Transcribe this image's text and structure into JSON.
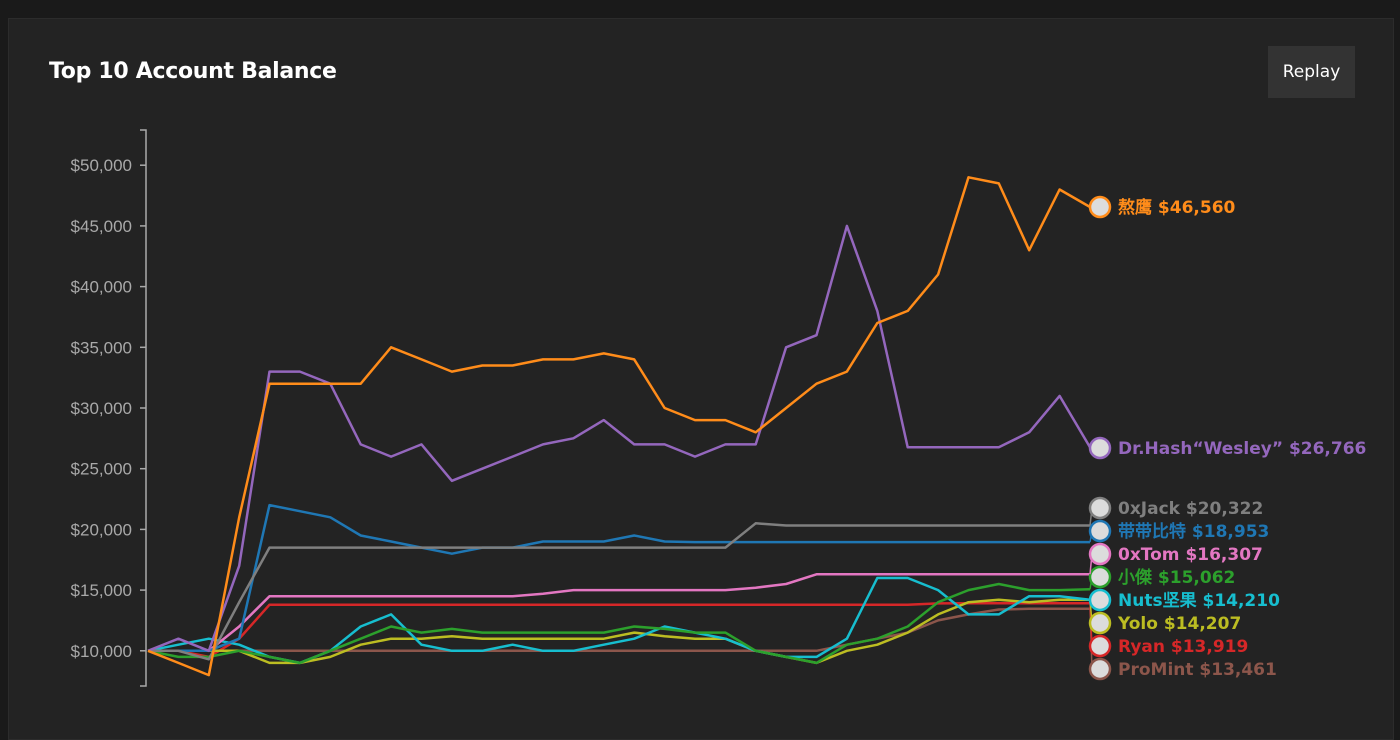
{
  "header": {
    "title": "Top 10 Account Balance",
    "replay_label": "Replay"
  },
  "chart_data": {
    "type": "line",
    "title": "Top 10 Account Balance",
    "xlabel": "",
    "ylabel": "",
    "ylim": [
      7100,
      52900
    ],
    "yticks": [
      {
        "v": 10000,
        "label": "$10,000"
      },
      {
        "v": 15000,
        "label": "$15,000"
      },
      {
        "v": 20000,
        "label": "$20,000"
      },
      {
        "v": 25000,
        "label": "$25,000"
      },
      {
        "v": 30000,
        "label": "$30,000"
      },
      {
        "v": 35000,
        "label": "$35,000"
      },
      {
        "v": 40000,
        "label": "$40,000"
      },
      {
        "v": 45000,
        "label": "$45,000"
      },
      {
        "v": 50000,
        "label": "$50,000"
      }
    ],
    "x": [
      0,
      1,
      2,
      3,
      4,
      5,
      6,
      7,
      8,
      9,
      10,
      11,
      12,
      13,
      14,
      15,
      16,
      17,
      18,
      19,
      20,
      21,
      22,
      23,
      24,
      25,
      26,
      27,
      28,
      29,
      30,
      31
    ],
    "series": [
      {
        "name": "熬鹰",
        "value_label": "$46,560",
        "color": "#ff8c1a",
        "label": "熬鹰 $46,560",
        "values": [
          10000,
          9000,
          8000,
          21000,
          32000,
          32000,
          32000,
          32000,
          35000,
          34000,
          33000,
          33500,
          33500,
          34000,
          34000,
          34500,
          34000,
          30000,
          29000,
          29000,
          28000,
          30000,
          32000,
          33000,
          37000,
          38000,
          41000,
          49000,
          48500,
          43000,
          48000,
          46560
        ]
      },
      {
        "name": "Dr.Hash“Wesley”",
        "value_label": "$26,766",
        "color": "#9467bd",
        "label": "Dr.Hash“Wesley” $26,766",
        "values": [
          10000,
          11000,
          10000,
          17000,
          33000,
          33000,
          32000,
          27000,
          26000,
          27000,
          24000,
          25000,
          26000,
          27000,
          27500,
          29000,
          27000,
          27000,
          26000,
          27000,
          27000,
          35000,
          36000,
          45000,
          38000,
          26766,
          26766,
          26766,
          26766,
          28000,
          31000,
          26766
        ]
      },
      {
        "name": "0xJack",
        "value_label": "$20,322",
        "color": "#7f7f7f",
        "label": "0xJack $20,322",
        "values": [
          10000,
          10000,
          9300,
          14000,
          18500,
          18500,
          18500,
          18500,
          18500,
          18500,
          18500,
          18500,
          18500,
          18500,
          18500,
          18500,
          18500,
          18500,
          18500,
          18500,
          20500,
          20322,
          20322,
          20322,
          20322,
          20322,
          20322,
          20322,
          20322,
          20322,
          20322,
          20322
        ]
      },
      {
        "name": "带带比特",
        "value_label": "$18,953",
        "color": "#1f77b4",
        "label": "带带比特 $18,953",
        "values": [
          10000,
          10000,
          10000,
          11000,
          22000,
          21500,
          21000,
          19500,
          19000,
          18500,
          18000,
          18500,
          18500,
          19000,
          19000,
          19000,
          19500,
          19000,
          18953,
          18953,
          18953,
          18953,
          18953,
          18953,
          18953,
          18953,
          18953,
          18953,
          18953,
          18953,
          18953,
          18953
        ]
      },
      {
        "name": "0xTom",
        "value_label": "$16,307",
        "color": "#e377c2",
        "label": "0xTom $16,307",
        "values": [
          10000,
          10000,
          10000,
          12000,
          14500,
          14500,
          14500,
          14500,
          14500,
          14500,
          14500,
          14500,
          14500,
          14700,
          15000,
          15000,
          15000,
          15000,
          15000,
          15000,
          15200,
          15500,
          16300,
          16307,
          16307,
          16307,
          16307,
          16307,
          16307,
          16307,
          16307,
          16307
        ]
      },
      {
        "name": "小傑",
        "value_label": "$15,062",
        "color": "#2ca02c",
        "label": "小傑 $15,062",
        "values": [
          10000,
          9500,
          9500,
          10000,
          9500,
          9000,
          10000,
          11000,
          12000,
          11500,
          11800,
          11500,
          11500,
          11500,
          11500,
          11500,
          12000,
          11800,
          11500,
          11500,
          10000,
          9500,
          9000,
          10500,
          11000,
          12000,
          14000,
          15000,
          15500,
          15000,
          15000,
          15062
        ]
      },
      {
        "name": "Nuts坚果",
        "value_label": "$14,210",
        "color": "#17becf",
        "label": "Nuts坚果 $14,210",
        "values": [
          10000,
          10500,
          11000,
          10500,
          9500,
          9000,
          10000,
          12000,
          13000,
          10500,
          10000,
          10000,
          10500,
          10000,
          10000,
          10500,
          11000,
          12000,
          11500,
          11000,
          10000,
          9500,
          9500,
          11000,
          16000,
          16000,
          15000,
          13000,
          13000,
          14500,
          14500,
          14210
        ]
      },
      {
        "name": "Yolo",
        "value_label": "$14,207",
        "color": "#bcbd22",
        "label": "Yolo $14,207",
        "values": [
          10000,
          10000,
          10000,
          10000,
          9000,
          9000,
          9500,
          10500,
          11000,
          11000,
          11200,
          11000,
          11000,
          11000,
          11000,
          11000,
          11500,
          11200,
          11000,
          11000,
          10000,
          9500,
          9000,
          10000,
          10500,
          11500,
          13000,
          14000,
          14200,
          14000,
          14200,
          14207
        ]
      },
      {
        "name": "Ryan",
        "value_label": "$13,919",
        "color": "#d62728",
        "label": "Ryan $13,919",
        "values": [
          10000,
          10000,
          9500,
          11000,
          13800,
          13800,
          13800,
          13800,
          13800,
          13800,
          13800,
          13800,
          13800,
          13800,
          13800,
          13800,
          13800,
          13800,
          13800,
          13800,
          13800,
          13800,
          13800,
          13800,
          13800,
          13800,
          13900,
          13919,
          13919,
          13919,
          13919,
          13919
        ]
      },
      {
        "name": "ProMint",
        "value_label": "$13,461",
        "color": "#8c564b",
        "label": "ProMint $13,461",
        "values": [
          10000,
          10000,
          10000,
          10000,
          10000,
          10000,
          10000,
          10000,
          10000,
          10000,
          10000,
          10000,
          10000,
          10000,
          10000,
          10000,
          10000,
          10000,
          10000,
          10000,
          10000,
          10000,
          10000,
          10500,
          11000,
          11500,
          12500,
          13000,
          13400,
          13461,
          13461,
          13461
        ]
      }
    ]
  }
}
